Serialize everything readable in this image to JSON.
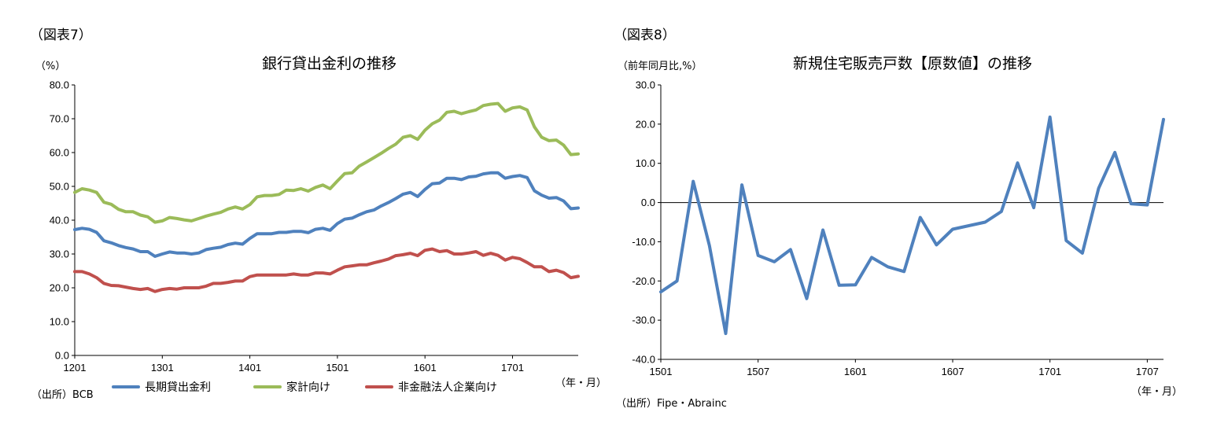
{
  "left": {
    "figure_label": "（図表7）",
    "title": "銀行貸出金利の推移",
    "unit": "（%）",
    "source": "（出所）BCB",
    "x_unit": "（年・月）",
    "colors": {
      "long": "#4f81bd",
      "household": "#9bbb59",
      "corporate": "#c0504d"
    }
  },
  "right": {
    "figure_label": "（図表8）",
    "title": "新規住宅販売戸数【原数値】の推移",
    "unit": "（前年同月比,%）",
    "source": "（出所）Fipe・Abrainc",
    "x_unit": "（年・月）",
    "color": "#4f81bd"
  },
  "chart_data": [
    {
      "type": "line",
      "title": "銀行貸出金利の推移",
      "ylabel": "（%）",
      "ylim": [
        0,
        80
      ],
      "yticks": [
        "0.0",
        "10.0",
        "20.0",
        "30.0",
        "40.0",
        "50.0",
        "60.0",
        "70.0",
        "80.0"
      ],
      "xticks": [
        "1201",
        "1301",
        "1401",
        "1501",
        "1601",
        "1701"
      ],
      "x": [
        "1201",
        "1202",
        "1203",
        "1204",
        "1205",
        "1206",
        "1207",
        "1208",
        "1209",
        "1210",
        "1211",
        "1212",
        "1301",
        "1302",
        "1303",
        "1304",
        "1305",
        "1306",
        "1307",
        "1308",
        "1309",
        "1310",
        "1311",
        "1312",
        "1401",
        "1402",
        "1403",
        "1404",
        "1405",
        "1406",
        "1407",
        "1408",
        "1409",
        "1410",
        "1411",
        "1412",
        "1501",
        "1502",
        "1503",
        "1504",
        "1505",
        "1506",
        "1507",
        "1508",
        "1509",
        "1510",
        "1511",
        "1512",
        "1601",
        "1602",
        "1603",
        "1604",
        "1605",
        "1606",
        "1607",
        "1608",
        "1609",
        "1610",
        "1611",
        "1612",
        "1701",
        "1702",
        "1703",
        "1704",
        "1705",
        "1706",
        "1707",
        "1708",
        "1709",
        "1710"
      ],
      "grid": false,
      "legend_position": "bottom",
      "series": [
        {
          "name": "長期貸出金利",
          "values": [
            37.2,
            37.6,
            37.3,
            36.4,
            33.9,
            33.3,
            32.5,
            31.9,
            31.5,
            30.7,
            30.7,
            29.3,
            30.0,
            30.6,
            30.3,
            30.3,
            30.0,
            30.3,
            31.3,
            31.7,
            32.0,
            32.8,
            33.2,
            32.9,
            34.6,
            36.0,
            36.0,
            36.0,
            36.4,
            36.4,
            36.7,
            36.7,
            36.3,
            37.3,
            37.6,
            37.0,
            39.0,
            40.3,
            40.6,
            41.6,
            42.5,
            43.0,
            44.2,
            45.2,
            46.4,
            47.7,
            48.2,
            47.0,
            49.1,
            50.8,
            51.0,
            52.4,
            52.4,
            52.0,
            52.8,
            53.0,
            53.7,
            54.0,
            54.0,
            52.4,
            52.9,
            53.2,
            52.6,
            48.7,
            47.4,
            46.5,
            46.7,
            45.7,
            43.4,
            43.6
          ]
        },
        {
          "name": "家計向け",
          "values": [
            48.2,
            49.3,
            48.9,
            48.2,
            45.3,
            44.7,
            43.2,
            42.5,
            42.5,
            41.5,
            41.0,
            39.4,
            39.8,
            40.8,
            40.5,
            40.1,
            39.8,
            40.5,
            41.2,
            41.8,
            42.3,
            43.3,
            43.9,
            43.3,
            44.6,
            46.9,
            47.3,
            47.3,
            47.6,
            48.9,
            48.8,
            49.3,
            48.6,
            49.7,
            50.4,
            49.3,
            51.6,
            53.8,
            54.0,
            56.0,
            57.2,
            58.5,
            59.8,
            61.2,
            62.5,
            64.5,
            65.0,
            63.9,
            66.6,
            68.5,
            69.6,
            71.9,
            72.2,
            71.5,
            72.1,
            72.6,
            73.9,
            74.3,
            74.5,
            72.2,
            73.2,
            73.5,
            72.6,
            67.6,
            64.5,
            63.5,
            63.7,
            62.2,
            59.4,
            59.6
          ]
        },
        {
          "name": "非金融法人企業向け",
          "values": [
            24.8,
            24.8,
            24.1,
            23.0,
            21.3,
            20.7,
            20.6,
            20.2,
            19.8,
            19.5,
            19.8,
            18.9,
            19.5,
            19.8,
            19.6,
            20.0,
            20.0,
            20.0,
            20.5,
            21.3,
            21.3,
            21.6,
            22.0,
            22.0,
            23.3,
            23.8,
            23.8,
            23.8,
            23.8,
            23.8,
            24.1,
            23.8,
            23.8,
            24.4,
            24.4,
            24.1,
            25.2,
            26.2,
            26.5,
            26.8,
            26.8,
            27.4,
            27.9,
            28.5,
            29.5,
            29.8,
            30.2,
            29.5,
            31.1,
            31.5,
            30.7,
            31.0,
            30.0,
            30.0,
            30.3,
            30.7,
            29.6,
            30.2,
            29.6,
            28.2,
            29.0,
            28.6,
            27.5,
            26.2,
            26.2,
            24.8,
            25.2,
            24.5,
            23.0,
            23.4
          ]
        }
      ]
    },
    {
      "type": "line",
      "title": "新規住宅販売戸数【原数値】の推移",
      "ylabel": "（前年同月比,%）",
      "ylim": [
        -40,
        30
      ],
      "yticks": [
        "-40.0",
        "-30.0",
        "-20.0",
        "-10.0",
        "0.0",
        "10.0",
        "20.0",
        "30.0"
      ],
      "xticks": [
        "1501",
        "1507",
        "1601",
        "1607",
        "1701",
        "1707"
      ],
      "x": [
        "1501",
        "1502",
        "1503",
        "1504",
        "1505",
        "1506",
        "1507",
        "1508",
        "1509",
        "1510",
        "1511",
        "1512",
        "1601",
        "1602",
        "1603",
        "1604",
        "1605",
        "1606",
        "1607",
        "1608",
        "1609",
        "1610",
        "1611",
        "1612",
        "1701",
        "1702",
        "1703",
        "1704",
        "1705",
        "1706",
        "1707",
        "1708"
      ],
      "grid": false,
      "zero_line": true,
      "series": [
        {
          "values": [
            -22.8,
            -20.0,
            5.4,
            -11.0,
            -33.4,
            4.5,
            -13.5,
            -15.1,
            -12.0,
            -24.5,
            -7.0,
            -21.1,
            -21.0,
            -14.0,
            -16.4,
            -17.6,
            -3.8,
            -10.8,
            -6.8,
            -5.9,
            -5.0,
            -2.3,
            10.1,
            -1.3,
            21.8,
            -9.7,
            -12.9,
            3.6,
            12.8,
            -0.3,
            -0.6,
            21.2
          ]
        }
      ]
    }
  ]
}
